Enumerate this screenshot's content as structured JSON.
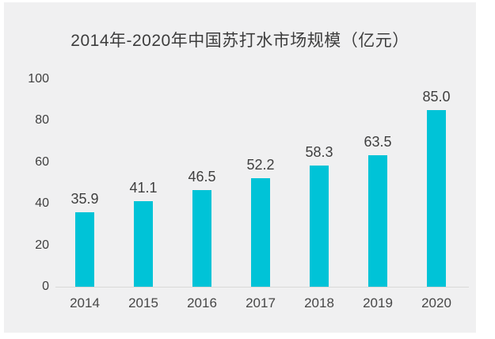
{
  "title": "2014年-2020年中国苏打水市场规模（亿元）",
  "colors": {
    "bar": "#00c3d7",
    "panel_background": "#f0f0f1",
    "page_background": "#ffffff",
    "text": "#3f3f3f",
    "axis_line": "#d8d8d8"
  },
  "chart_data": {
    "type": "bar",
    "title": "2014年-2020年中国苏打水市场规模（亿元）",
    "categories": [
      "2014",
      "2015",
      "2016",
      "2017",
      "2018",
      "2019",
      "2020"
    ],
    "values": [
      35.9,
      41.1,
      46.5,
      52.2,
      58.3,
      63.5,
      85.0
    ],
    "data_labels": [
      "35.9",
      "41.1",
      "46.5",
      "52.2",
      "58.3",
      "63.5",
      "85.0"
    ],
    "xlabel": "",
    "ylabel": "",
    "ylim": [
      0,
      100
    ],
    "yticks": [
      0,
      20,
      40,
      60,
      80,
      100
    ],
    "grid": false,
    "legend": false,
    "bar_color": "#00c3d7"
  }
}
